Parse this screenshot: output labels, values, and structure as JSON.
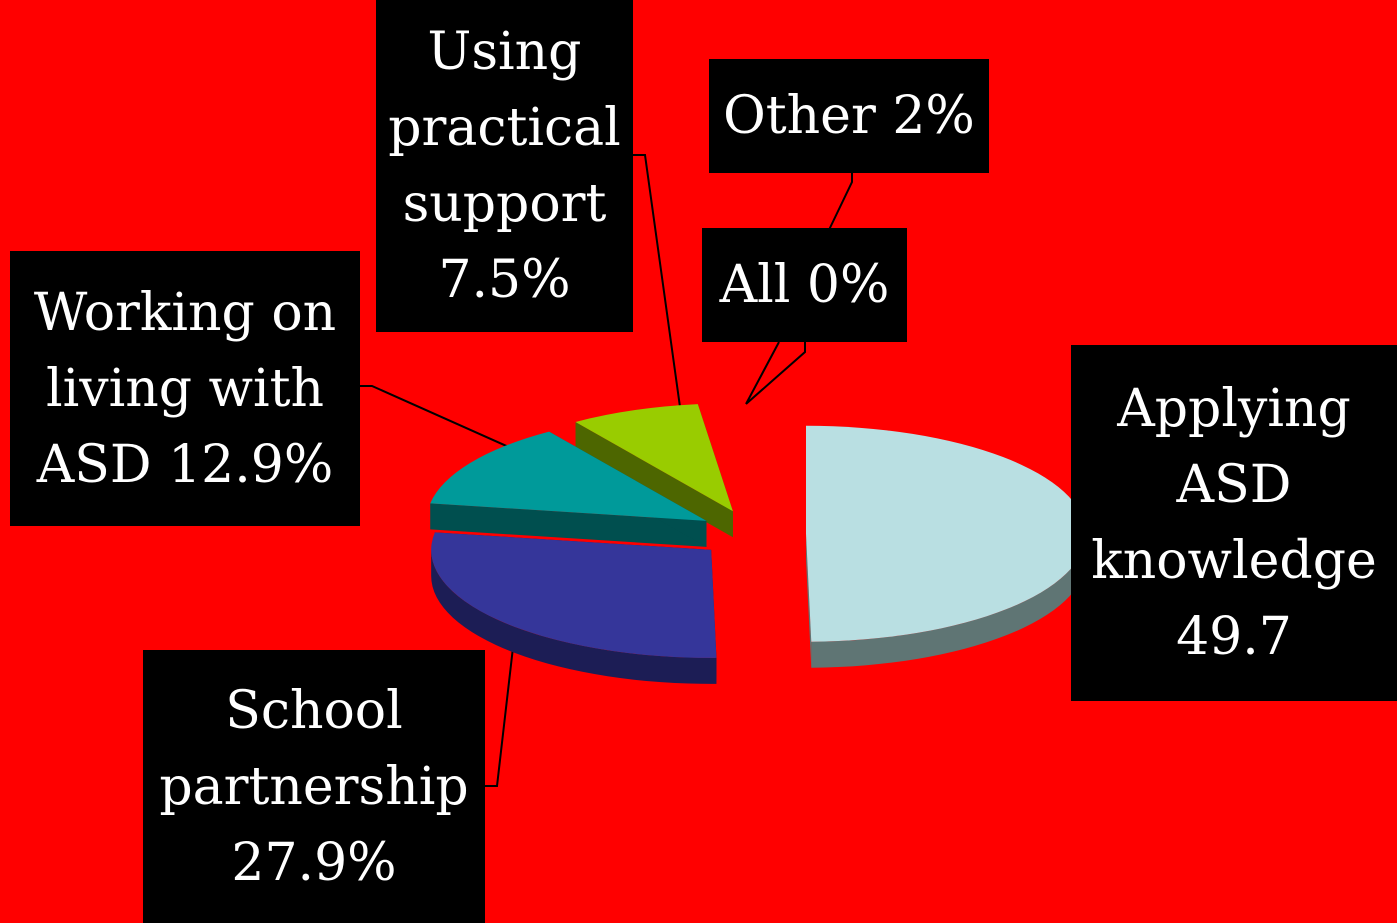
{
  "chart_data": {
    "type": "pie",
    "categories": [
      "Applying ASD knowledge",
      "School partnership",
      "Working on living with ASD",
      "Using practical support",
      "All",
      "Other"
    ],
    "values": [
      49.7,
      27.9,
      12.9,
      7.5,
      0,
      2
    ],
    "labels": [
      "Applying\nASD\nknowledge\n49.7",
      "School\npartnership\n27.9%",
      "Working on\nliving with\nASD 12.9%",
      "Using\npractical\nsupport\n7.5%",
      "All 0%",
      "Other 2%"
    ],
    "colors": [
      "#b9dfe2",
      "#35369a",
      "#009a9a",
      "#99cc00",
      "#ffffff",
      "#ff0000"
    ],
    "side_colors": [
      "#5f7574",
      "#1c1d55",
      "#004f4f",
      "#4d6600",
      "#999999",
      "#990000"
    ],
    "background": "#ff0000",
    "label_background": "#000000",
    "label_text_color": "#ffffff",
    "style": "3d-exploded",
    "legend": "none"
  }
}
